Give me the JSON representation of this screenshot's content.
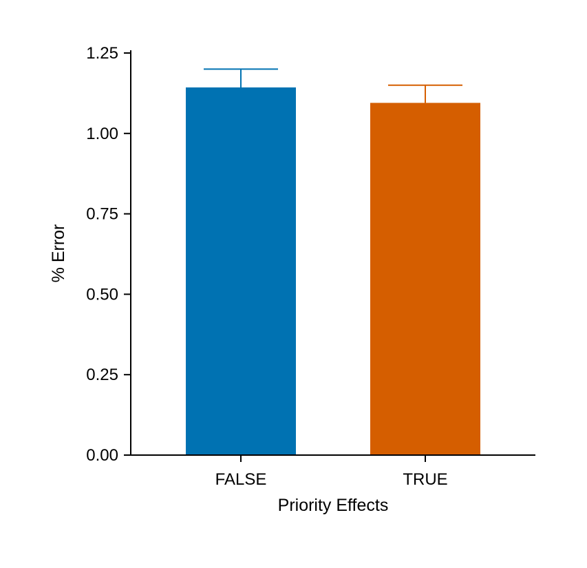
{
  "chart_data": {
    "type": "bar",
    "title": "",
    "xlabel": "Priority Effects",
    "ylabel": "% Error",
    "categories": [
      "FALSE",
      "TRUE"
    ],
    "values": [
      1.143,
      1.095
    ],
    "error_upper": [
      1.2,
      1.15
    ],
    "bar_colors": [
      "#0072B2",
      "#D55E00"
    ],
    "ylim": [
      0,
      1.25
    ],
    "yticks": [
      0,
      0.25,
      0.5,
      0.75,
      1.0,
      1.25
    ],
    "ytick_labels": [
      "0.00",
      "0.25",
      "0.50",
      "0.75",
      "1.00",
      "1.25"
    ],
    "grid": false,
    "legend": "none"
  }
}
